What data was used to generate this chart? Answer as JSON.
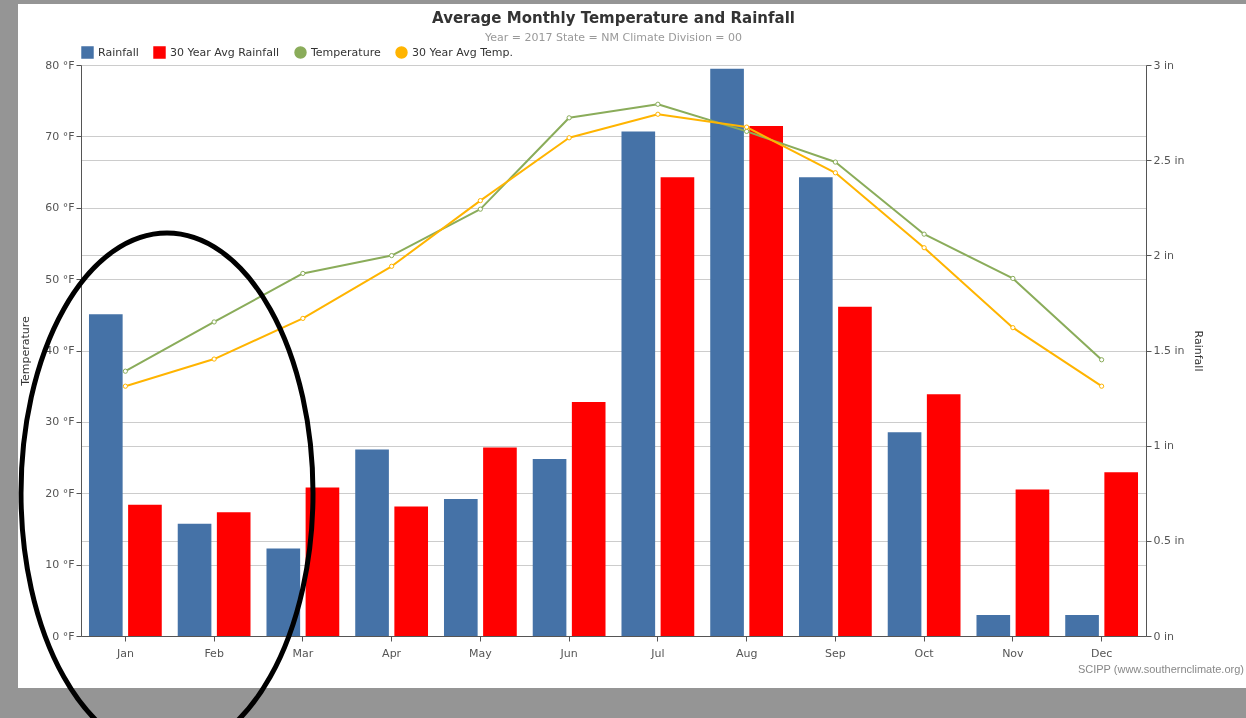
{
  "chart_data": {
    "type": "bar",
    "title": "Average Monthly Temperature and Rainfall",
    "subtitle": "Year = 2017 State = NM Climate Division = 00",
    "categories": [
      "Jan",
      "Feb",
      "Mar",
      "Apr",
      "May",
      "Jun",
      "Jul",
      "Aug",
      "Sep",
      "Oct",
      "Nov",
      "Dec"
    ],
    "series": [
      {
        "name": "Rainfall",
        "axis": "y2",
        "color": "#4572a7",
        "values": [
          1.69,
          0.59,
          0.46,
          0.98,
          0.72,
          0.93,
          2.65,
          2.98,
          2.41,
          1.07,
          0.11,
          0.11
        ]
      },
      {
        "name": "30 Year Avg Rainfall",
        "axis": "y2",
        "color": "#ff0000",
        "values": [
          0.69,
          0.65,
          0.78,
          0.68,
          0.99,
          1.23,
          2.41,
          2.68,
          1.73,
          1.27,
          0.77,
          0.86
        ]
      },
      {
        "name": "Temperature",
        "type": "line",
        "color": "#8aac5a",
        "values": [
          37.1,
          44.0,
          50.8,
          53.3,
          59.8,
          72.6,
          74.5,
          70.7,
          66.4,
          56.3,
          50.1,
          38.7
        ]
      },
      {
        "name": "30 Year Avg Temp.",
        "type": "line",
        "color": "#ffb400",
        "values": [
          35.0,
          38.8,
          44.5,
          51.8,
          61.0,
          69.8,
          73.1,
          71.3,
          64.9,
          54.4,
          43.2,
          35.0
        ]
      }
    ],
    "ylabel": "Temperature",
    "y2label": "Rainfall",
    "ylim": [
      0,
      80
    ],
    "yticks": [
      {
        "value": 0,
        "label": "0 °F"
      },
      {
        "value": 10,
        "label": "10 °F"
      },
      {
        "value": 20,
        "label": "20 °F"
      },
      {
        "value": 30,
        "label": "30 °F"
      },
      {
        "value": 40,
        "label": "40 °F"
      },
      {
        "value": 50,
        "label": "50 °F"
      },
      {
        "value": 60,
        "label": "60 °F"
      },
      {
        "value": 70,
        "label": "70 °F"
      },
      {
        "value": 80,
        "label": "80 °F"
      }
    ],
    "y2lim": [
      0,
      3
    ],
    "y2ticks": [
      {
        "value": 0,
        "label": "0 in"
      },
      {
        "value": 0.5,
        "label": "0.5 in"
      },
      {
        "value": 1,
        "label": "1 in"
      },
      {
        "value": 1.5,
        "label": "1.5 in"
      },
      {
        "value": 2,
        "label": "2 in"
      },
      {
        "value": 2.5,
        "label": "2.5 in"
      },
      {
        "value": 3,
        "label": "3 in"
      }
    ],
    "annotations": [
      "SCIPP (www.southernclimate.org)"
    ],
    "grid": true,
    "legend": "top",
    "marker": "circle",
    "line_style": "solid"
  }
}
